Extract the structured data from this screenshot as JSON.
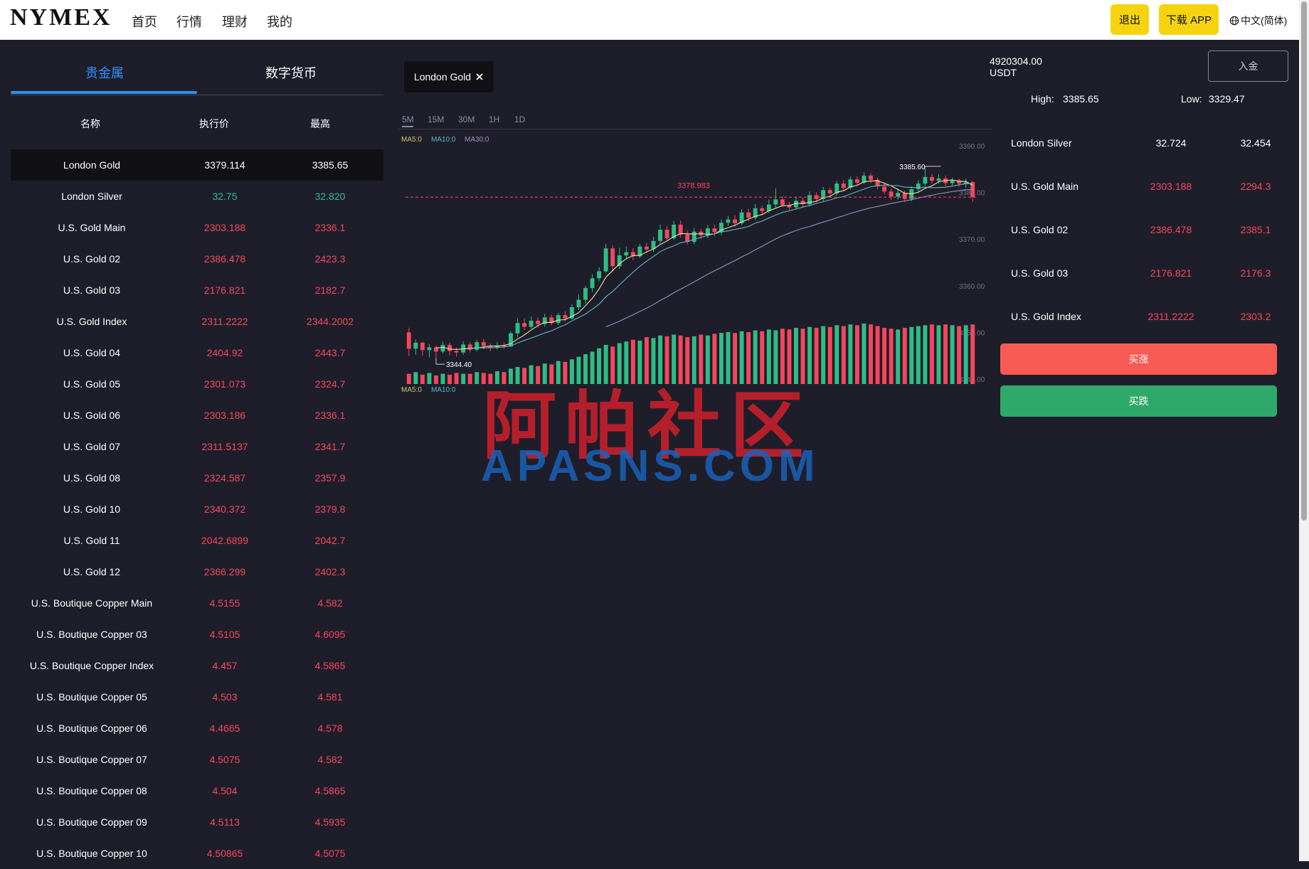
{
  "nav": {
    "logo": "NYMEX",
    "links": [
      "首页",
      "行情",
      "理财",
      "我的"
    ],
    "logout": "退出",
    "download": "下载 APP",
    "language": "中文(简体)"
  },
  "colors": {
    "up": "#2ebd85",
    "down": "#f6465d",
    "accent": "#2f8fff",
    "yellow": "#f5d40f",
    "buy_up": "#f85a54",
    "buy_down": "#2ea969"
  },
  "market": {
    "tabs": [
      "贵金属",
      "数字货币"
    ],
    "headers": [
      "名称",
      "执行价",
      "最高"
    ],
    "rows": [
      {
        "name": "London Gold",
        "price": "3379.114",
        "high": "3385.65",
        "color": "#ffffff"
      },
      {
        "name": "London Silver",
        "price": "32.75",
        "high": "32.820",
        "color": "#2ebd85"
      },
      {
        "name": "U.S. Gold Main",
        "price": "2303.188",
        "high": "2336.1",
        "color": "#f6465d"
      },
      {
        "name": "U.S. Gold 02",
        "price": "2386.478",
        "high": "2423.3",
        "color": "#f6465d"
      },
      {
        "name": "U.S. Gold 03",
        "price": "2176.821",
        "high": "2182.7",
        "color": "#f6465d"
      },
      {
        "name": "U.S. Gold Index",
        "price": "2311.2222",
        "high": "2344.2002",
        "color": "#f6465d"
      },
      {
        "name": "U.S. Gold 04",
        "price": "2404.92",
        "high": "2443.7",
        "color": "#f6465d"
      },
      {
        "name": "U.S. Gold 05",
        "price": "2301.073",
        "high": "2324.7",
        "color": "#f6465d"
      },
      {
        "name": "U.S. Gold 06",
        "price": "2303.186",
        "high": "2336.1",
        "color": "#f6465d"
      },
      {
        "name": "U.S. Gold 07",
        "price": "2311.5137",
        "high": "2341.7",
        "color": "#f6465d"
      },
      {
        "name": "U.S. Gold 08",
        "price": "2324.587",
        "high": "2357.9",
        "color": "#f6465d"
      },
      {
        "name": "U.S. Gold 10",
        "price": "2340.372",
        "high": "2379.8",
        "color": "#f6465d"
      },
      {
        "name": "U.S. Gold 11",
        "price": "2042.6899",
        "high": "2042.7",
        "color": "#f6465d"
      },
      {
        "name": "U.S. Gold 12",
        "price": "2366.299",
        "high": "2402.3",
        "color": "#f6465d"
      },
      {
        "name": "U.S. Boutique Copper Main",
        "price": "4.5155",
        "high": "4.582",
        "color": "#f6465d"
      },
      {
        "name": "U.S. Boutique Copper 03",
        "price": "4.5105",
        "high": "4.6095",
        "color": "#f6465d"
      },
      {
        "name": "U.S. Boutique Copper Index",
        "price": "4.457",
        "high": "4.5865",
        "color": "#f6465d"
      },
      {
        "name": "U.S. Boutique Copper 05",
        "price": "4.503",
        "high": "4.581",
        "color": "#f6465d"
      },
      {
        "name": "U.S. Boutique Copper 06",
        "price": "4.4665",
        "high": "4.578",
        "color": "#f6465d"
      },
      {
        "name": "U.S. Boutique Copper 07",
        "price": "4.5075",
        "high": "4.582",
        "color": "#f6465d"
      },
      {
        "name": "U.S. Boutique Copper 08",
        "price": "4.504",
        "high": "4.5865",
        "color": "#f6465d"
      },
      {
        "name": "U.S. Boutique Copper 09",
        "price": "4.5113",
        "high": "4.5935",
        "color": "#f6465d"
      },
      {
        "name": "U.S. Boutique Copper 10",
        "price": "4.50865",
        "high": "4.5075",
        "color": "#f6465d"
      }
    ]
  },
  "chart": {
    "symbol": "London Gold",
    "timeframes": [
      "5M",
      "15M",
      "30M",
      "1H",
      "1D"
    ],
    "active_timeframe": "5M",
    "ma_legend": [
      "MA5:0",
      "MA10:0",
      "MA30:0"
    ],
    "vol_legend": [
      "MA5:0",
      "MA10:0"
    ],
    "y_ticks": [
      "3390.00",
      "3380.00",
      "3370.00",
      "3360.00",
      "3350.00",
      "3340.00"
    ],
    "y_range": [
      3340,
      3390
    ],
    "current_price_label": "3378.983",
    "current_price": 3378.983,
    "high_label": "3385.60",
    "low_label": "3344.40",
    "watermark_cn": "阿帕社区",
    "watermark_en": "APASNS.COM"
  },
  "chart_data": {
    "type": "candlestick",
    "title": "London Gold",
    "x_count": 84,
    "candles": [
      [
        3350.0,
        3346.5,
        3351.0,
        3344.9
      ],
      [
        3346.5,
        3347.8,
        3348.5,
        3345.2
      ],
      [
        3347.8,
        3346.2,
        3348.0,
        3345.0
      ],
      [
        3346.2,
        3346.8,
        3347.5,
        3344.6
      ],
      [
        3346.8,
        3345.9,
        3347.2,
        3344.4
      ],
      [
        3345.9,
        3347.3,
        3348.0,
        3345.5
      ],
      [
        3347.3,
        3346.0,
        3347.8,
        3345.1
      ],
      [
        3346.0,
        3345.7,
        3346.8,
        3344.8
      ],
      [
        3345.7,
        3347.4,
        3348.1,
        3345.2
      ],
      [
        3347.4,
        3346.3,
        3347.9,
        3345.6
      ],
      [
        3346.3,
        3347.9,
        3348.4,
        3345.9
      ],
      [
        3347.9,
        3347.1,
        3348.6,
        3346.4
      ],
      [
        3347.1,
        3346.8,
        3347.6,
        3346.0
      ],
      [
        3346.8,
        3347.2,
        3347.9,
        3346.3
      ],
      [
        3347.2,
        3347.0,
        3347.8,
        3346.5
      ],
      [
        3347.0,
        3349.8,
        3350.2,
        3346.8
      ],
      [
        3349.8,
        3352.0,
        3353.1,
        3349.0
      ],
      [
        3352.0,
        3351.2,
        3353.0,
        3350.5
      ],
      [
        3351.2,
        3352.5,
        3353.4,
        3350.8
      ],
      [
        3352.5,
        3351.8,
        3353.2,
        3351.0
      ],
      [
        3351.8,
        3353.2,
        3354.0,
        3351.2
      ],
      [
        3353.2,
        3352.0,
        3353.8,
        3351.5
      ],
      [
        3352.0,
        3353.7,
        3354.2,
        3351.6
      ],
      [
        3353.7,
        3353.0,
        3354.5,
        3352.4
      ],
      [
        3353.0,
        3355.4,
        3356.0,
        3352.7
      ],
      [
        3355.4,
        3357.0,
        3358.2,
        3354.8
      ],
      [
        3357.0,
        3359.5,
        3360.0,
        3356.2
      ],
      [
        3359.5,
        3361.6,
        3362.5,
        3358.7
      ],
      [
        3361.6,
        3363.1,
        3364.0,
        3360.9
      ],
      [
        3363.1,
        3368.0,
        3369.0,
        3362.8
      ],
      [
        3368.0,
        3364.2,
        3368.7,
        3363.0
      ],
      [
        3364.2,
        3366.5,
        3368.2,
        3363.6
      ],
      [
        3366.5,
        3367.2,
        3368.4,
        3365.8
      ],
      [
        3367.2,
        3366.3,
        3368.0,
        3365.5
      ],
      [
        3366.3,
        3368.4,
        3369.0,
        3365.9
      ],
      [
        3368.4,
        3367.8,
        3369.2,
        3367.0
      ],
      [
        3367.8,
        3369.6,
        3370.5,
        3367.2
      ],
      [
        3369.6,
        3372.0,
        3373.1,
        3369.0
      ],
      [
        3372.0,
        3370.2,
        3372.8,
        3369.5
      ],
      [
        3370.2,
        3373.1,
        3373.9,
        3369.8
      ],
      [
        3373.1,
        3371.0,
        3374.0,
        3370.3
      ],
      [
        3371.0,
        3369.4,
        3371.8,
        3368.8
      ],
      [
        3369.4,
        3371.6,
        3372.4,
        3368.9
      ],
      [
        3371.6,
        3370.8,
        3372.2,
        3370.0
      ],
      [
        3370.8,
        3372.3,
        3373.0,
        3370.2
      ],
      [
        3372.3,
        3371.5,
        3373.1,
        3370.6
      ],
      [
        3371.5,
        3373.5,
        3374.2,
        3370.9
      ],
      [
        3373.5,
        3374.2,
        3375.0,
        3372.9
      ],
      [
        3374.2,
        3373.4,
        3375.1,
        3372.7
      ],
      [
        3373.4,
        3375.7,
        3376.4,
        3373.0
      ],
      [
        3375.7,
        3374.6,
        3376.5,
        3373.9
      ],
      [
        3374.6,
        3376.6,
        3377.5,
        3374.1
      ],
      [
        3376.6,
        3376.0,
        3377.2,
        3375.3
      ],
      [
        3376.0,
        3377.4,
        3378.5,
        3375.6
      ],
      [
        3377.4,
        3378.5,
        3380.9,
        3376.8
      ],
      [
        3378.5,
        3377.3,
        3379.2,
        3376.9
      ],
      [
        3377.3,
        3376.8,
        3378.0,
        3376.2
      ],
      [
        3376.8,
        3378.2,
        3379.0,
        3376.3
      ],
      [
        3378.2,
        3377.5,
        3378.9,
        3376.7
      ],
      [
        3377.5,
        3379.4,
        3380.2,
        3377.0
      ],
      [
        3379.4,
        3378.6,
        3380.0,
        3377.9
      ],
      [
        3378.6,
        3380.5,
        3381.2,
        3378.1
      ],
      [
        3380.5,
        3379.8,
        3381.0,
        3379.1
      ],
      [
        3379.8,
        3381.9,
        3382.5,
        3379.3
      ],
      [
        3381.9,
        3381.0,
        3382.6,
        3380.4
      ],
      [
        3381.0,
        3382.8,
        3383.4,
        3380.6
      ],
      [
        3382.8,
        3382.1,
        3383.5,
        3381.5
      ],
      [
        3382.1,
        3383.6,
        3384.3,
        3381.8
      ],
      [
        3383.6,
        3382.7,
        3384.1,
        3382.0
      ],
      [
        3382.7,
        3381.3,
        3383.2,
        3380.7
      ],
      [
        3381.3,
        3380.2,
        3381.9,
        3379.6
      ],
      [
        3380.2,
        3379.1,
        3380.8,
        3378.4
      ],
      [
        3379.1,
        3379.9,
        3380.6,
        3378.5
      ],
      [
        3379.9,
        3378.6,
        3380.4,
        3378.0
      ],
      [
        3378.6,
        3380.7,
        3381.3,
        3378.1
      ],
      [
        3380.7,
        3381.9,
        3382.6,
        3380.1
      ],
      [
        3381.9,
        3383.3,
        3385.6,
        3381.4
      ],
      [
        3383.3,
        3382.5,
        3384.0,
        3381.9
      ],
      [
        3382.5,
        3383.0,
        3383.9,
        3381.8
      ],
      [
        3383.0,
        3382.0,
        3383.6,
        3381.3
      ],
      [
        3382.0,
        3382.6,
        3383.2,
        3381.5
      ],
      [
        3382.6,
        3381.9,
        3383.0,
        3381.2
      ],
      [
        3381.9,
        3382.2,
        3382.9,
        3381.0
      ],
      [
        3382.2,
        3379.0,
        3382.5,
        3378.0
      ]
    ],
    "volumes": [
      12,
      14,
      11,
      13,
      10,
      12,
      11,
      13,
      12,
      12,
      14,
      13,
      12,
      15,
      14,
      18,
      20,
      19,
      22,
      21,
      24,
      23,
      27,
      26,
      29,
      32,
      35,
      38,
      42,
      46,
      44,
      48,
      50,
      52,
      51,
      55,
      54,
      57,
      56,
      58,
      57,
      55,
      56,
      58,
      57,
      59,
      60,
      61,
      60,
      62,
      61,
      63,
      62,
      64,
      63,
      65,
      64,
      66,
      65,
      67,
      66,
      68,
      67,
      69,
      68,
      70,
      69,
      71,
      70,
      68,
      66,
      65,
      64,
      66,
      67,
      68,
      69,
      70,
      69,
      70,
      69,
      68,
      69,
      70
    ],
    "ylim": [
      3340,
      3390
    ],
    "high": 3385.6,
    "low": 3344.4,
    "last": 3378.983
  },
  "account": {
    "balance": "4920304.00",
    "currency": "USDT",
    "deposit": "入金",
    "high_label": "High:",
    "high_value": "3385.65",
    "low_label": "Low:",
    "low_value": "3329.47"
  },
  "watchlist": [
    {
      "name": "London Silver",
      "price": "32.724",
      "high": "32.454",
      "color": "#ffffff"
    },
    {
      "name": "U.S. Gold Main",
      "price": "2303.188",
      "high": "2294.3",
      "color": "#f6465d"
    },
    {
      "name": "U.S. Gold 02",
      "price": "2386.478",
      "high": "2385.1",
      "color": "#f6465d"
    },
    {
      "name": "U.S. Gold 03",
      "price": "2176.821",
      "high": "2176.3",
      "color": "#f6465d"
    },
    {
      "name": "U.S. Gold Index",
      "price": "2311.2222",
      "high": "2303.2",
      "color": "#f6465d"
    }
  ],
  "actions": {
    "buy_up": "买涨",
    "buy_down": "买跌"
  }
}
